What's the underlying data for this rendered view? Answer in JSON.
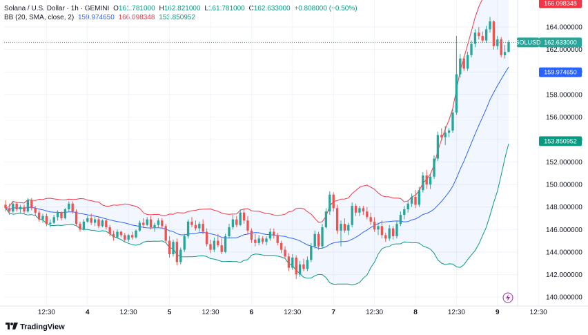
{
  "header": {
    "symbol": "Solana / U.S. Dollar · 1h · GEMINI",
    "o_label": "O",
    "o_value": "161.781000",
    "h_label": "H",
    "h_value": "162.821000",
    "l_label": "L",
    "l_value": "161.781000",
    "c_label": "C",
    "c_value": "162.633000",
    "change": "+0.808000 (+0.50%)",
    "bb_label": "BB (20, SMA, close, 2)",
    "bb_basis": "159.974650",
    "bb_upper": "166.098348",
    "bb_lower": "153.850952"
  },
  "footer": {
    "brand": "TradingView"
  },
  "colors": {
    "up": "#26a69a",
    "down": "#ef5350",
    "basis": "#2962ff",
    "upper": "#f23645",
    "lower": "#089981",
    "fill": "#2962ff"
  },
  "chart_data": {
    "type": "candlestick",
    "symbol_tag": "SOLUSD",
    "last_price": "162.633000",
    "price_tags": {
      "upper": "166.098348",
      "basis": "159.974650",
      "lower": "153.850952"
    },
    "ylim": [
      139.2,
      166.4
    ],
    "y_ticks": [
      "140.000000",
      "142.000000",
      "144.000000",
      "146.000000",
      "148.000000",
      "150.000000",
      "152.000000",
      "154.000000",
      "156.000000",
      "158.000000",
      "160.000000",
      "162.000000",
      "164.000000"
    ],
    "x_ticks": [
      {
        "label": "12:30",
        "i": 11
      },
      {
        "label": "4",
        "i": 22
      },
      {
        "label": "12:30",
        "i": 33
      },
      {
        "label": "5",
        "i": 44
      },
      {
        "label": "12:30",
        "i": 55
      },
      {
        "label": "6",
        "i": 66
      },
      {
        "label": "12:30",
        "i": 77
      },
      {
        "label": "7",
        "i": 88
      },
      {
        "label": "12:30",
        "i": 99
      },
      {
        "label": "8",
        "i": 110
      },
      {
        "label": "12:30",
        "i": 121
      },
      {
        "label": "9",
        "i": 132
      },
      {
        "label": "12:30",
        "i": 143
      }
    ],
    "candles": [
      [
        148.2,
        148.6,
        147.6,
        147.9
      ],
      [
        147.9,
        148.3,
        147.3,
        147.6
      ],
      [
        147.6,
        148.5,
        147.5,
        148.3
      ],
      [
        148.3,
        148.4,
        147.6,
        147.8
      ],
      [
        147.8,
        148.2,
        147.4,
        148.0
      ],
      [
        148.0,
        148.2,
        147.4,
        147.6
      ],
      [
        147.6,
        148.8,
        147.5,
        148.6
      ],
      [
        148.6,
        148.8,
        147.7,
        147.9
      ],
      [
        147.9,
        148.1,
        147.2,
        147.5
      ],
      [
        147.5,
        147.7,
        146.7,
        146.9
      ],
      [
        146.9,
        147.4,
        146.6,
        147.2
      ],
      [
        147.2,
        147.4,
        146.3,
        146.5
      ],
      [
        146.5,
        146.9,
        146.2,
        146.6
      ],
      [
        146.6,
        147.3,
        146.5,
        147.1
      ],
      [
        147.1,
        147.7,
        146.8,
        147.5
      ],
      [
        147.5,
        147.6,
        146.8,
        147.0
      ],
      [
        147.0,
        147.9,
        146.9,
        147.8
      ],
      [
        147.8,
        148.5,
        147.6,
        148.3
      ],
      [
        148.3,
        148.5,
        147.4,
        147.6
      ],
      [
        147.6,
        147.8,
        146.3,
        146.5
      ],
      [
        146.5,
        146.7,
        145.8,
        146.0
      ],
      [
        146.0,
        146.9,
        145.9,
        146.7
      ],
      [
        146.7,
        147.2,
        146.6,
        147.0
      ],
      [
        147.0,
        147.4,
        146.4,
        146.6
      ],
      [
        146.6,
        147.1,
        146.3,
        146.9
      ],
      [
        146.9,
        147.1,
        146.1,
        146.3
      ],
      [
        146.3,
        146.9,
        146.2,
        146.8
      ],
      [
        146.8,
        146.9,
        146.0,
        146.2
      ],
      [
        146.2,
        146.4,
        145.4,
        145.6
      ],
      [
        145.6,
        145.9,
        145.0,
        145.3
      ],
      [
        145.3,
        146.0,
        145.2,
        145.8
      ],
      [
        145.8,
        145.9,
        145.3,
        145.5
      ],
      [
        145.5,
        145.7,
        144.9,
        145.1
      ],
      [
        145.1,
        145.6,
        144.9,
        145.5
      ],
      [
        145.5,
        145.8,
        145.1,
        145.3
      ],
      [
        145.3,
        146.0,
        145.2,
        145.9
      ],
      [
        145.9,
        146.8,
        145.8,
        146.6
      ],
      [
        146.6,
        147.0,
        146.2,
        146.4
      ],
      [
        146.4,
        147.1,
        146.3,
        146.9
      ],
      [
        146.9,
        147.2,
        146.0,
        146.2
      ],
      [
        146.2,
        146.6,
        145.8,
        146.4
      ],
      [
        146.4,
        147.0,
        146.2,
        146.8
      ],
      [
        146.8,
        147.0,
        146.1,
        146.3
      ],
      [
        146.3,
        146.5,
        144.8,
        145.0
      ],
      [
        145.0,
        145.4,
        143.5,
        143.8
      ],
      [
        143.8,
        145.1,
        143.6,
        144.9
      ],
      [
        144.9,
        145.2,
        142.8,
        143.1
      ],
      [
        143.1,
        144.4,
        142.9,
        144.2
      ],
      [
        144.2,
        145.6,
        144.0,
        145.4
      ],
      [
        145.4,
        146.9,
        145.2,
        146.7
      ],
      [
        146.7,
        147.1,
        146.2,
        146.4
      ],
      [
        146.4,
        146.8,
        145.9,
        146.1
      ],
      [
        146.1,
        146.7,
        145.8,
        146.5
      ],
      [
        146.5,
        146.9,
        145.6,
        145.8
      ],
      [
        145.8,
        146.1,
        144.5,
        144.7
      ],
      [
        144.7,
        145.1,
        143.9,
        144.2
      ],
      [
        144.2,
        145.3,
        144.0,
        145.0
      ],
      [
        145.0,
        145.6,
        144.4,
        144.6
      ],
      [
        144.6,
        145.2,
        143.8,
        144.0
      ],
      [
        144.0,
        145.6,
        143.9,
        145.4
      ],
      [
        145.4,
        146.5,
        145.2,
        146.2
      ],
      [
        146.2,
        147.3,
        146.0,
        146.9
      ],
      [
        146.9,
        147.2,
        146.2,
        146.4
      ],
      [
        146.4,
        147.8,
        146.3,
        147.5
      ],
      [
        147.5,
        147.8,
        146.5,
        146.8
      ],
      [
        146.8,
        147.2,
        145.6,
        145.9
      ],
      [
        145.9,
        146.1,
        144.8,
        145.1
      ],
      [
        145.1,
        145.6,
        144.5,
        144.8
      ],
      [
        144.8,
        145.5,
        144.6,
        145.2
      ],
      [
        145.2,
        145.4,
        144.7,
        144.9
      ],
      [
        144.9,
        145.4,
        144.6,
        145.2
      ],
      [
        145.2,
        146.1,
        145.0,
        145.8
      ],
      [
        145.8,
        146.1,
        145.2,
        145.5
      ],
      [
        145.5,
        145.7,
        144.6,
        144.8
      ],
      [
        144.8,
        145.0,
        143.9,
        144.2
      ],
      [
        144.2,
        144.5,
        143.4,
        143.6
      ],
      [
        143.6,
        143.9,
        142.3,
        142.6
      ],
      [
        142.6,
        143.8,
        142.4,
        143.5
      ],
      [
        143.5,
        143.7,
        141.6,
        142.0
      ],
      [
        142.0,
        143.2,
        141.8,
        142.9
      ],
      [
        142.9,
        143.4,
        142.3,
        142.5
      ],
      [
        142.5,
        143.6,
        142.3,
        143.3
      ],
      [
        143.3,
        144.8,
        143.1,
        144.5
      ],
      [
        144.5,
        145.9,
        144.3,
        145.6
      ],
      [
        145.6,
        145.8,
        144.2,
        144.5
      ],
      [
        144.5,
        146.5,
        144.3,
        146.2
      ],
      [
        146.2,
        147.9,
        146.1,
        147.6
      ],
      [
        147.6,
        149.4,
        147.3,
        149.1
      ],
      [
        149.1,
        149.3,
        147.6,
        147.9
      ],
      [
        147.9,
        148.2,
        145.6,
        145.9
      ],
      [
        145.9,
        146.8,
        144.5,
        146.5
      ],
      [
        146.5,
        147.0,
        145.7,
        145.9
      ],
      [
        145.9,
        146.6,
        145.5,
        146.4
      ],
      [
        146.4,
        148.4,
        146.2,
        148.1
      ],
      [
        148.1,
        148.3,
        147.2,
        147.5
      ],
      [
        147.5,
        148.1,
        147.2,
        147.9
      ],
      [
        147.9,
        148.1,
        147.3,
        147.6
      ],
      [
        147.6,
        148.0,
        146.9,
        147.1
      ],
      [
        147.1,
        147.5,
        146.4,
        146.7
      ],
      [
        146.7,
        147.1,
        145.8,
        146.0
      ],
      [
        146.0,
        146.6,
        145.5,
        146.3
      ],
      [
        146.3,
        146.8,
        145.2,
        145.5
      ],
      [
        145.5,
        145.7,
        144.9,
        145.2
      ],
      [
        145.2,
        146.4,
        145.0,
        146.1
      ],
      [
        146.1,
        146.3,
        145.1,
        145.4
      ],
      [
        145.4,
        146.8,
        145.2,
        146.5
      ],
      [
        146.5,
        147.6,
        146.3,
        147.3
      ],
      [
        147.3,
        148.1,
        146.9,
        147.8
      ],
      [
        147.8,
        148.6,
        147.5,
        148.3
      ],
      [
        148.3,
        149.2,
        148.0,
        148.9
      ],
      [
        148.9,
        149.5,
        147.9,
        148.2
      ],
      [
        148.2,
        149.8,
        148.0,
        149.5
      ],
      [
        149.5,
        151.1,
        149.3,
        150.8
      ],
      [
        150.8,
        151.3,
        149.6,
        150.0
      ],
      [
        150.0,
        151.0,
        149.6,
        150.7
      ],
      [
        150.7,
        152.6,
        150.5,
        152.3
      ],
      [
        152.3,
        154.7,
        152.1,
        154.4
      ],
      [
        154.4,
        155.0,
        153.9,
        154.2
      ],
      [
        154.2,
        155.2,
        153.5,
        154.6
      ],
      [
        154.6,
        155.0,
        154.2,
        154.8
      ],
      [
        154.8,
        156.7,
        154.6,
        156.4
      ],
      [
        156.4,
        163.2,
        156.2,
        159.8
      ],
      [
        159.8,
        161.6,
        159.5,
        161.2
      ],
      [
        161.2,
        161.4,
        160.1,
        160.3
      ],
      [
        160.3,
        161.8,
        160.1,
        161.5
      ],
      [
        161.5,
        162.8,
        161.3,
        162.5
      ],
      [
        162.5,
        163.8,
        162.2,
        163.5
      ],
      [
        163.5,
        164.0,
        162.9,
        163.2
      ],
      [
        163.2,
        163.6,
        162.6,
        162.8
      ],
      [
        162.8,
        164.1,
        162.6,
        163.8
      ],
      [
        163.8,
        164.9,
        163.5,
        164.5
      ],
      [
        164.5,
        164.6,
        162.0,
        162.3
      ],
      [
        162.3,
        163.2,
        162.0,
        162.9
      ],
      [
        162.9,
        163.1,
        161.3,
        161.5
      ],
      [
        161.5,
        162.4,
        161.2,
        161.78
      ],
      [
        161.781,
        162.821,
        161.781,
        162.633
      ]
    ]
  }
}
